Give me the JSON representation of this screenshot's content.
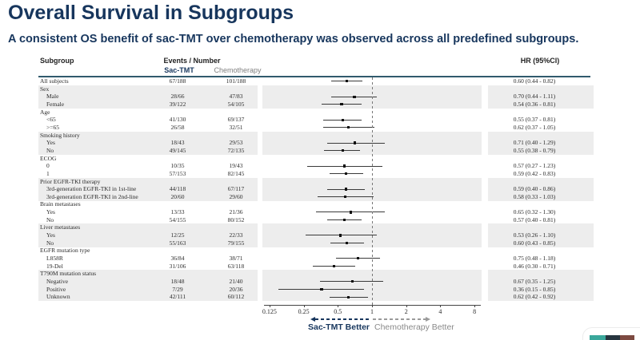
{
  "title": "Overall Survival in Subgroups",
  "subtitle": "A consistent OS benefit of sac-TMT over chemotherapy was observed across all predefined subgroups.",
  "colors": {
    "navy": "#17365d",
    "header_rule": "#315a6d",
    "band_gray": "#ededed",
    "gray_text": "#808080",
    "marker": "#111111"
  },
  "table": {
    "col_subgroup": "Subgroup",
    "col_events": "Events / Number",
    "col_sac": "Sac-TMT",
    "col_chemo": "Chemotherapy",
    "col_hr": "HR (95%CI)"
  },
  "footer": {
    "left_label": "Sac-TMT Better",
    "right_label": "Chemotherapy Better"
  },
  "chart_data": {
    "type": "forest",
    "x_axis": {
      "scale": "log2",
      "tick_values": [
        0.125,
        0.25,
        0.5,
        1,
        2,
        4,
        8
      ],
      "tick_labels": [
        "0.125",
        "0.25",
        "0.5",
        "1",
        "2",
        "4",
        "8"
      ],
      "xlim": [
        0.125,
        8
      ],
      "reference_line": 1
    },
    "rows": [
      {
        "label": "All subjects",
        "indent": 0,
        "band": false,
        "sac": "67/188",
        "chemo": "101/188",
        "hr": 0.6,
        "lo": 0.44,
        "hi": 0.82,
        "ci": "0.60 (0.44 - 0.82)"
      },
      {
        "label": "Sex",
        "indent": 0,
        "band": true,
        "header": true
      },
      {
        "label": "Male",
        "indent": 1,
        "band": true,
        "sac": "28/66",
        "chemo": "47/83",
        "hr": 0.7,
        "lo": 0.44,
        "hi": 1.11,
        "ci": "0.70 (0.44 - 1.11)"
      },
      {
        "label": "Female",
        "indent": 1,
        "band": true,
        "sac": "39/122",
        "chemo": "54/105",
        "hr": 0.54,
        "lo": 0.36,
        "hi": 0.81,
        "ci": "0.54 (0.36 - 0.81)"
      },
      {
        "label": "Age",
        "indent": 0,
        "band": false,
        "header": true
      },
      {
        "label": "<65",
        "indent": 1,
        "band": false,
        "sac": "41/130",
        "chemo": "69/137",
        "hr": 0.55,
        "lo": 0.37,
        "hi": 0.81,
        "ci": "0.55 (0.37 - 0.81)"
      },
      {
        "label": ">=65",
        "indent": 1,
        "band": false,
        "sac": "26/58",
        "chemo": "32/51",
        "hr": 0.62,
        "lo": 0.37,
        "hi": 1.05,
        "ci": "0.62 (0.37 - 1.05)"
      },
      {
        "label": "Smoking history",
        "indent": 0,
        "band": true,
        "header": true
      },
      {
        "label": "Yes",
        "indent": 1,
        "band": true,
        "sac": "18/43",
        "chemo": "29/53",
        "hr": 0.71,
        "lo": 0.4,
        "hi": 1.29,
        "ci": "0.71 (0.40 - 1.29)"
      },
      {
        "label": "No",
        "indent": 1,
        "band": true,
        "sac": "49/145",
        "chemo": "72/135",
        "hr": 0.55,
        "lo": 0.38,
        "hi": 0.79,
        "ci": "0.55 (0.38 - 0.79)"
      },
      {
        "label": "ECOG",
        "indent": 0,
        "band": false,
        "header": true
      },
      {
        "label": "0",
        "indent": 1,
        "band": false,
        "sac": "10/35",
        "chemo": "19/43",
        "hr": 0.57,
        "lo": 0.27,
        "hi": 1.23,
        "ci": "0.57 (0.27 - 1.23)"
      },
      {
        "label": "1",
        "indent": 1,
        "band": false,
        "sac": "57/153",
        "chemo": "82/145",
        "hr": 0.59,
        "lo": 0.42,
        "hi": 0.83,
        "ci": "0.59 (0.42 - 0.83)"
      },
      {
        "label": "Prior EGFR-TKI therapy",
        "indent": 0,
        "band": true,
        "header": true
      },
      {
        "label": "3rd-generation EGFR-TKI in 1st-line",
        "indent": 1,
        "band": true,
        "sac": "44/118",
        "chemo": "67/117",
        "hr": 0.59,
        "lo": 0.4,
        "hi": 0.86,
        "ci": "0.59 (0.40 - 0.86)"
      },
      {
        "label": "3rd-generation EGFR-TKI in 2nd-line",
        "indent": 1,
        "band": true,
        "sac": "20/60",
        "chemo": "29/60",
        "hr": 0.58,
        "lo": 0.33,
        "hi": 1.03,
        "ci": "0.58 (0.33 - 1.03)"
      },
      {
        "label": "Brain metastases",
        "indent": 0,
        "band": false,
        "header": true
      },
      {
        "label": "Yes",
        "indent": 1,
        "band": false,
        "sac": "13/33",
        "chemo": "21/36",
        "hr": 0.65,
        "lo": 0.32,
        "hi": 1.3,
        "ci": "0.65 (0.32 - 1.30)"
      },
      {
        "label": "No",
        "indent": 1,
        "band": false,
        "sac": "54/155",
        "chemo": "80/152",
        "hr": 0.57,
        "lo": 0.4,
        "hi": 0.81,
        "ci": "0.57 (0.40 - 0.81)"
      },
      {
        "label": "Liver metastases",
        "indent": 0,
        "band": true,
        "header": true
      },
      {
        "label": "Yes",
        "indent": 1,
        "band": true,
        "sac": "12/25",
        "chemo": "22/33",
        "hr": 0.53,
        "lo": 0.26,
        "hi": 1.1,
        "ci": "0.53 (0.26 - 1.10)"
      },
      {
        "label": "No",
        "indent": 1,
        "band": true,
        "sac": "55/163",
        "chemo": "79/155",
        "hr": 0.6,
        "lo": 0.43,
        "hi": 0.85,
        "ci": "0.60 (0.43 - 0.85)"
      },
      {
        "label": "EGFR mutation type",
        "indent": 0,
        "band": false,
        "header": true
      },
      {
        "label": "L858R",
        "indent": 1,
        "band": false,
        "sac": "36/84",
        "chemo": "38/71",
        "hr": 0.75,
        "lo": 0.48,
        "hi": 1.18,
        "ci": "0.75 (0.48 - 1.18)"
      },
      {
        "label": "19-Del",
        "indent": 1,
        "band": false,
        "sac": "31/106",
        "chemo": "63/118",
        "hr": 0.46,
        "lo": 0.3,
        "hi": 0.71,
        "ci": "0.46 (0.30 - 0.71)"
      },
      {
        "label": "T790M mutation status",
        "indent": 0,
        "band": true,
        "header": true
      },
      {
        "label": "Negative",
        "indent": 1,
        "band": true,
        "sac": "18/48",
        "chemo": "21/40",
        "hr": 0.67,
        "lo": 0.35,
        "hi": 1.25,
        "ci": "0.67 (0.35 - 1.25)"
      },
      {
        "label": "Positive",
        "indent": 1,
        "band": true,
        "sac": "7/29",
        "chemo": "20/36",
        "hr": 0.36,
        "lo": 0.15,
        "hi": 0.85,
        "ci": "0.36 (0.15 - 0.85)"
      },
      {
        "label": "Unknown",
        "indent": 1,
        "band": true,
        "sac": "42/111",
        "chemo": "60/112",
        "hr": 0.62,
        "lo": 0.42,
        "hi": 0.92,
        "ci": "0.62 (0.42 - 0.92)"
      }
    ]
  }
}
